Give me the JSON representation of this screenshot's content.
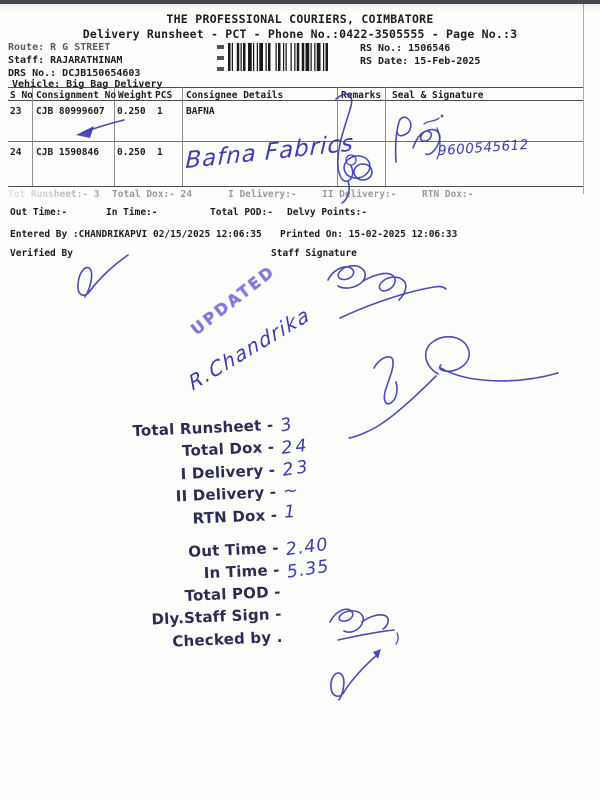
{
  "header": {
    "company": "THE PROFESSIONAL COURIERS, COIMBATORE",
    "subtitle": "Delivery Runsheet - PCT - Phone No.:0422-3505555 - Page No.:3"
  },
  "info": {
    "route": "Route: R G STREET",
    "staff": "Staff: RAJARATHINAM",
    "drs_no": "DRS No.: DCJB150654603",
    "vehicle": "Vehicle: Big Bag Delivery",
    "rs_no": "RS No.: 1506546",
    "rs_date": "RS Date: 15-Feb-2025"
  },
  "table": {
    "headers": {
      "sno": "S No",
      "consignment": "Consignment No",
      "weight": "Weight",
      "pcs": "PCS",
      "consignee": "Consignee Details",
      "remarks": "Remarks",
      "seal": "Seal & Signature"
    },
    "rows": [
      {
        "sno": "23",
        "consignment": "CJB 80999607",
        "weight": "0.250",
        "pcs": "1",
        "consignee": "BAFNA",
        "remarks": "",
        "seal": ""
      },
      {
        "sno": "24",
        "consignment": "CJB 1590846",
        "weight": "0.250",
        "pcs": "1",
        "consignee": "",
        "remarks": "",
        "seal": ""
      }
    ]
  },
  "summary_row": {
    "runsheet": "Tot Runsheet:- 3",
    "total_dox": "Total Dox:- 24",
    "i_delivery": "I Delivery:-",
    "ii_delivery": "II Delivery:-",
    "rtn_dox": "RTN Dox:-"
  },
  "times_row": {
    "out_time": "Out Time:-",
    "in_time": "In Time:-",
    "total_pod": "Total POD:-",
    "delvy_points": "Delvy Points:-"
  },
  "footer": {
    "entered_by": "Entered By :CHANDRIKAPVI 02/15/2025 12:06:35",
    "printed_on": "Printed On: 15-02-2025 12:06:33",
    "verified_by": "Verified By",
    "staff_signature": "Staff Signature"
  },
  "handwriting": {
    "consignee_note": "Bafna Fabrics",
    "seal_phone": "9600545612",
    "signer_name": "R.Chandrika",
    "stamp": "UPDATED",
    "ink_color": "#3c3cb4",
    "stamp_color": "#6c5ad2"
  },
  "totals": {
    "items": [
      {
        "label": "Total Runsheet -",
        "value": "3"
      },
      {
        "label": "Total Dox -",
        "value": "24"
      },
      {
        "label": "I Delivery -",
        "value": "23"
      },
      {
        "label": "II Delivery -",
        "value": "∼"
      },
      {
        "label": "RTN Dox -",
        "value": "1"
      },
      {
        "label": "Out Time -",
        "value": "2.40"
      },
      {
        "label": "In Time -",
        "value": "5.35"
      },
      {
        "label": "Total POD -",
        "value": ""
      },
      {
        "label": "Dly.Staff Sign -",
        "value": ""
      },
      {
        "label": "Checked by .",
        "value": ""
      }
    ]
  }
}
